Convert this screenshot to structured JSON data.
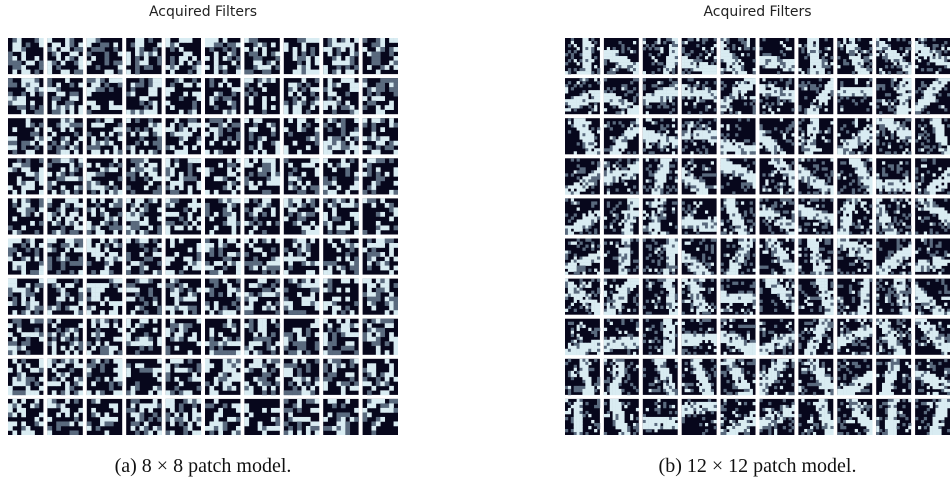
{
  "figure": {
    "panels": [
      {
        "title": "Acquired Filters",
        "caption": "(a) 8 × 8 patch model.",
        "grid": {
          "rows": 10,
          "cols": 10,
          "patch_size": 8
        }
      },
      {
        "title": "Acquired Filters",
        "caption": "(b) 12 × 12 patch model.",
        "grid": {
          "rows": 10,
          "cols": 10,
          "patch_size": 12
        }
      }
    ],
    "colors": {
      "dark": "#07071c",
      "mid": "#5a6a7e",
      "light": "#d9ecf2",
      "separator": "#ffffff"
    }
  }
}
